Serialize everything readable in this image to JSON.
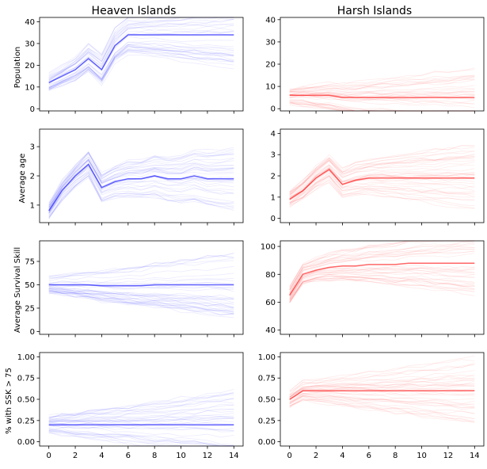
{
  "chart_data": {
    "type": "line",
    "column_titles": [
      "Heaven Islands",
      "Harsh Islands"
    ],
    "row_ylabels": [
      "Population",
      "Average age",
      "Average Survival Skill",
      "% with SSK > 75"
    ],
    "x_ticks": [
      0,
      2,
      4,
      6,
      8,
      10,
      12,
      14
    ],
    "xlim": [
      0,
      14
    ],
    "grid": false,
    "panels": [
      {
        "row": 0,
        "col": 0,
        "color": "#0000ff",
        "ylim": [
          -1,
          42
        ],
        "yticks": [
          "0",
          "10",
          "20",
          "30",
          "40"
        ],
        "ytick_values": [
          0,
          10,
          20,
          30,
          40
        ],
        "trend": {
          "x": [
            0,
            1,
            2,
            3,
            4,
            5,
            6,
            7,
            8,
            9,
            10,
            11,
            12,
            13,
            14
          ],
          "y": [
            12,
            15,
            18,
            23,
            18,
            29,
            34,
            34,
            34,
            34,
            34,
            34,
            34,
            34,
            34
          ]
        }
      },
      {
        "row": 0,
        "col": 1,
        "color": "#ff0000",
        "ylim": [
          -1,
          41
        ],
        "yticks": [
          "0",
          "10",
          "20",
          "30",
          "40"
        ],
        "ytick_values": [
          0,
          10,
          20,
          30,
          40
        ],
        "trend": {
          "x": [
            0,
            1,
            2,
            3,
            4,
            5,
            6,
            7,
            8,
            9,
            10,
            11,
            12,
            13,
            14
          ],
          "y": [
            6,
            6,
            6,
            6,
            5,
            5,
            5,
            5,
            5,
            5,
            5,
            5,
            5,
            5,
            5
          ]
        }
      },
      {
        "row": 1,
        "col": 0,
        "color": "#0000ff",
        "ylim": [
          0.4,
          3.6
        ],
        "yticks": [
          "1",
          "2",
          "3"
        ],
        "ytick_values": [
          1,
          2,
          3
        ],
        "trend": {
          "x": [
            0,
            1,
            2,
            3,
            4,
            5,
            6,
            7,
            8,
            9,
            10,
            11,
            12,
            13,
            14
          ],
          "y": [
            0.8,
            1.5,
            2.0,
            2.4,
            1.6,
            1.8,
            1.9,
            1.9,
            2.0,
            1.9,
            1.9,
            2.0,
            1.9,
            1.9,
            1.9
          ]
        }
      },
      {
        "row": 1,
        "col": 1,
        "color": "#ff0000",
        "ylim": [
          -0.2,
          4.2
        ],
        "yticks": [
          "0",
          "1",
          "2",
          "3",
          "4"
        ],
        "ytick_values": [
          0,
          1,
          2,
          3,
          4
        ],
        "trend": {
          "x": [
            0,
            1,
            2,
            3,
            4,
            5,
            6,
            7,
            8,
            9,
            10,
            11,
            12,
            13,
            14
          ],
          "y": [
            0.9,
            1.3,
            1.9,
            2.3,
            1.6,
            1.8,
            1.9,
            1.9,
            1.9,
            1.9,
            1.9,
            1.9,
            1.9,
            1.9,
            1.9
          ]
        }
      },
      {
        "row": 2,
        "col": 0,
        "color": "#0000ff",
        "ylim": [
          -3,
          97
        ],
        "yticks": [
          "0",
          "25",
          "50",
          "75"
        ],
        "ytick_values": [
          0,
          25,
          50,
          75
        ],
        "trend": {
          "x": [
            0,
            1,
            2,
            3,
            4,
            5,
            6,
            7,
            8,
            9,
            10,
            11,
            12,
            13,
            14
          ],
          "y": [
            50,
            50,
            50,
            50,
            49,
            49,
            49,
            49,
            50,
            50,
            50,
            50,
            50,
            50,
            50
          ]
        }
      },
      {
        "row": 2,
        "col": 1,
        "color": "#ff0000",
        "ylim": [
          37,
          104
        ],
        "yticks": [
          "40",
          "60",
          "80",
          "100"
        ],
        "ytick_values": [
          40,
          60,
          80,
          100
        ],
        "trend": {
          "x": [
            0,
            1,
            2,
            3,
            4,
            5,
            6,
            7,
            8,
            9,
            10,
            11,
            12,
            13,
            14
          ],
          "y": [
            65,
            80,
            83,
            85,
            86,
            86,
            87,
            87,
            87,
            88,
            88,
            88,
            88,
            88,
            88
          ]
        }
      },
      {
        "row": 3,
        "col": 0,
        "color": "#0000ff",
        "ylim": [
          -0.05,
          1.05
        ],
        "yticks": [
          "0.00",
          "0.25",
          "0.50",
          "0.75",
          "1.00"
        ],
        "ytick_values": [
          0,
          0.25,
          0.5,
          0.75,
          1
        ],
        "trend": {
          "x": [
            0,
            1,
            2,
            3,
            4,
            5,
            6,
            7,
            8,
            9,
            10,
            11,
            12,
            13,
            14
          ],
          "y": [
            0.2,
            0.2,
            0.2,
            0.2,
            0.2,
            0.2,
            0.2,
            0.2,
            0.2,
            0.2,
            0.2,
            0.2,
            0.2,
            0.2,
            0.2
          ]
        }
      },
      {
        "row": 3,
        "col": 1,
        "color": "#ff0000",
        "ylim": [
          -0.05,
          1.05
        ],
        "yticks": [
          "0.00",
          "0.25",
          "0.50",
          "0.75",
          "1.00"
        ],
        "ytick_values": [
          0,
          0.25,
          0.5,
          0.75,
          1
        ],
        "trend": {
          "x": [
            0,
            1,
            2,
            3,
            4,
            5,
            6,
            7,
            8,
            9,
            10,
            11,
            12,
            13,
            14
          ],
          "y": [
            0.5,
            0.6,
            0.6,
            0.6,
            0.6,
            0.6,
            0.6,
            0.6,
            0.6,
            0.6,
            0.6,
            0.6,
            0.6,
            0.6,
            0.6
          ]
        }
      }
    ]
  }
}
